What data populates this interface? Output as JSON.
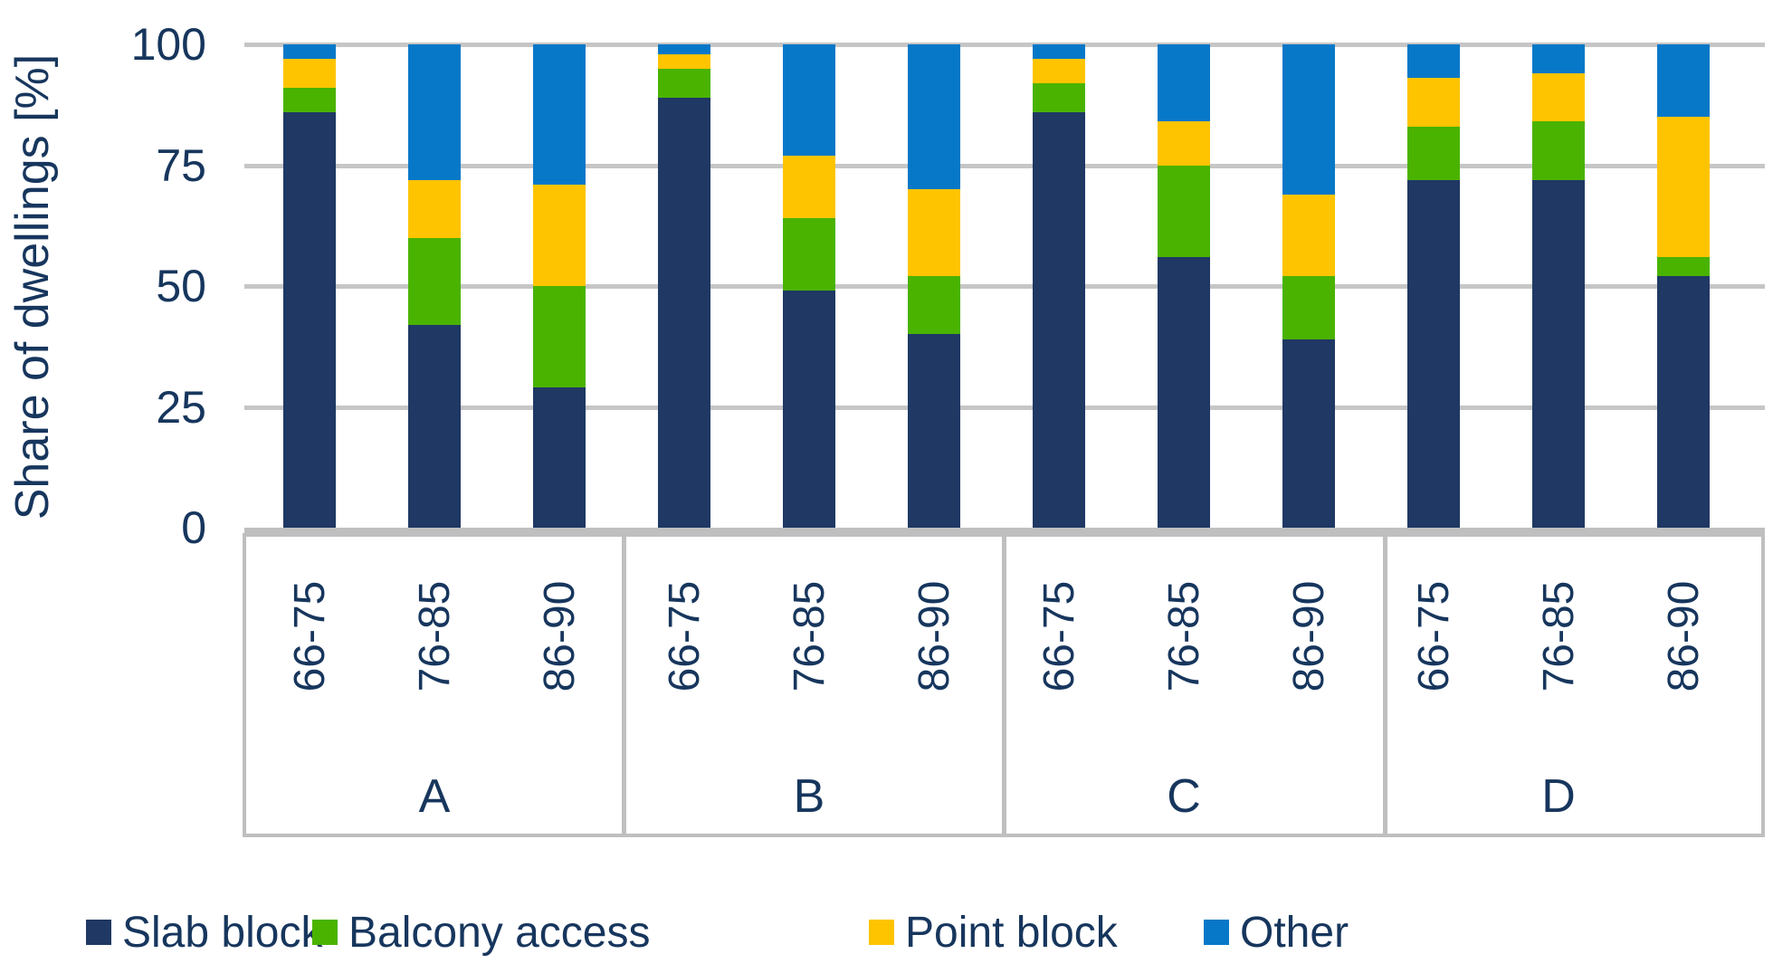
{
  "chart_data": {
    "type": "bar",
    "stacked": true,
    "percent_stacked": true,
    "ylabel": "Share of dwellings [%]",
    "ylim": [
      0,
      100
    ],
    "y_ticks": [
      0,
      25,
      50,
      75,
      100
    ],
    "grid": true,
    "legend_position": "bottom",
    "groups": [
      "A",
      "B",
      "C",
      "D"
    ],
    "periods": [
      "66-75",
      "76-85",
      "86-90"
    ],
    "series": [
      {
        "key": "slab",
        "name": "Slab block",
        "color": "#1F3864"
      },
      {
        "key": "balcony",
        "name": "Balcony access",
        "color": "#4AB300"
      },
      {
        "key": "point",
        "name": "Point block",
        "color": "#FFC400"
      },
      {
        "key": "other",
        "name": "Other",
        "color": "#0778C8"
      }
    ],
    "bars": [
      {
        "group": "A",
        "period": "66-75",
        "values": {
          "slab": 86,
          "balcony": 5,
          "point": 6,
          "other": 3
        }
      },
      {
        "group": "A",
        "period": "76-85",
        "values": {
          "slab": 42,
          "balcony": 18,
          "point": 12,
          "other": 28
        }
      },
      {
        "group": "A",
        "period": "86-90",
        "values": {
          "slab": 29,
          "balcony": 21,
          "point": 21,
          "other": 29
        }
      },
      {
        "group": "B",
        "period": "66-75",
        "values": {
          "slab": 89,
          "balcony": 6,
          "point": 3,
          "other": 2
        }
      },
      {
        "group": "B",
        "period": "76-85",
        "values": {
          "slab": 49,
          "balcony": 15,
          "point": 13,
          "other": 23
        }
      },
      {
        "group": "B",
        "period": "86-90",
        "values": {
          "slab": 40,
          "balcony": 12,
          "point": 18,
          "other": 30
        }
      },
      {
        "group": "C",
        "period": "66-75",
        "values": {
          "slab": 86,
          "balcony": 6,
          "point": 5,
          "other": 3
        }
      },
      {
        "group": "C",
        "period": "76-85",
        "values": {
          "slab": 56,
          "balcony": 19,
          "point": 9,
          "other": 16
        }
      },
      {
        "group": "C",
        "period": "86-90",
        "values": {
          "slab": 39,
          "balcony": 13,
          "point": 17,
          "other": 31
        }
      },
      {
        "group": "D",
        "period": "66-75",
        "values": {
          "slab": 72,
          "balcony": 11,
          "point": 10,
          "other": 7
        }
      },
      {
        "group": "D",
        "period": "76-85",
        "values": {
          "slab": 72,
          "balcony": 12,
          "point": 10,
          "other": 6
        }
      },
      {
        "group": "D",
        "period": "86-90",
        "values": {
          "slab": 52,
          "balcony": 4,
          "point": 29,
          "other": 15
        }
      }
    ]
  },
  "colors": {
    "text": "#17365D",
    "gridline": "#C6C6C6",
    "axis_box_border": "#BFBFBF",
    "background": "#FFFFFF"
  }
}
